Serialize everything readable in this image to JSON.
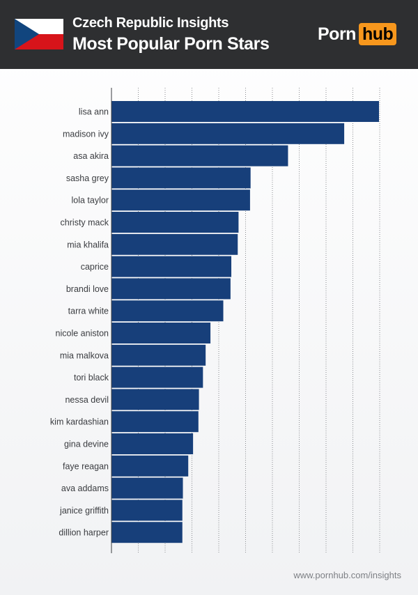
{
  "header": {
    "line1": "Czech Republic Insights",
    "line2": "Most Popular Porn Stars",
    "logo_part1": "Porn",
    "logo_part2": "hub"
  },
  "colors": {
    "header_bg": "#2e2f31",
    "bar": "#173f7a",
    "logo_accent": "#f7971d",
    "flag_white": "#ffffff",
    "flag_red": "#d7141a",
    "flag_blue": "#11457e"
  },
  "footer": {
    "url": "www.pornhub.com/insights"
  },
  "chart_data": {
    "type": "bar",
    "orientation": "horizontal",
    "categories": [
      "lisa ann",
      "madison ivy",
      "asa akira",
      "sasha grey",
      "lola taylor",
      "christy mack",
      "mia khalifa",
      "caprice",
      "brandi love",
      "tarra white",
      "nicole aniston",
      "mia malkova",
      "tori black",
      "nessa devil",
      "kim kardashian",
      "gina devine",
      "faye reagan",
      "ava addams",
      "janice griffith",
      "dillion harper"
    ],
    "values": [
      100,
      87,
      66,
      52,
      51.8,
      47.5,
      47.2,
      44.8,
      44.5,
      41.8,
      37,
      35.2,
      34.2,
      32.7,
      32.5,
      30.5,
      28.7,
      26.7,
      26.5,
      26.5
    ],
    "xlim": [
      0,
      100
    ],
    "vertical_grid": true,
    "axis_tick_labels_shown": false
  }
}
